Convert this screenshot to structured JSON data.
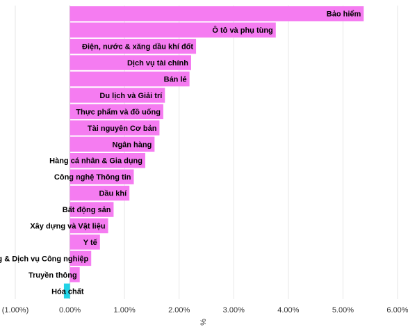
{
  "chart_data": {
    "type": "bar",
    "orientation": "horizontal",
    "categories": [
      "Bảo hiểm",
      "Ô tô và phụ tùng",
      "Điện, nước & xăng dầu khí đốt",
      "Dịch vụ tài chính",
      "Bán lẻ",
      "Du lịch và Giải trí",
      "Thực phẩm và đồ uống",
      "Tài nguyên Cơ bản",
      "Ngân hàng",
      "Hàng cá nhân & Gia dụng",
      "Công nghệ Thông tin",
      "Dầu khí",
      "Bất động sản",
      "Xây dựng và Vật liệu",
      "Y tế",
      "Hàng & Dịch vụ Công nghiệp",
      "Truyền thông",
      "Hóa chất"
    ],
    "values": [
      5.38,
      3.77,
      2.31,
      2.22,
      2.19,
      1.74,
      1.71,
      1.64,
      1.55,
      1.38,
      1.17,
      1.09,
      0.8,
      0.7,
      0.55,
      0.39,
      0.18,
      -0.11
    ],
    "xlim": [
      -1.0,
      6.0
    ],
    "xticks": [
      "(1.00%)",
      "0.00%",
      "1.00%",
      "2.00%",
      "3.00%",
      "4.00%",
      "5.00%",
      "6.00%"
    ],
    "xlabel": "%",
    "title": "",
    "grid": true,
    "colors": {
      "positive": "#F57CF1",
      "negative": "#22D3E6",
      "gridline": "#E6E6E6",
      "zero_line": "#BFBFBF"
    }
  }
}
